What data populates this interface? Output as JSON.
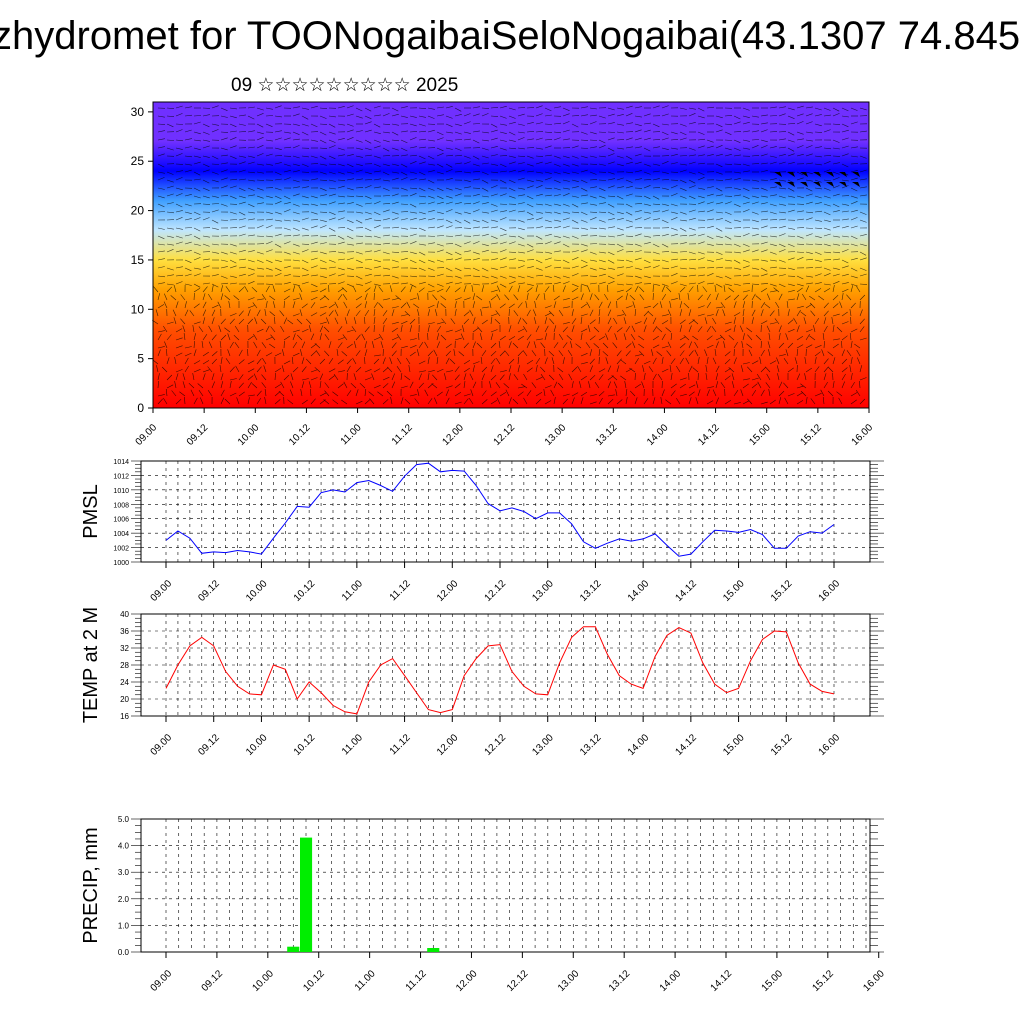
{
  "header": {
    "title": "zhydromet for TOONogaibaiSeloNogaibai(43.1307 74.845",
    "subtitle": "09 ☆☆☆☆☆☆☆☆☆ 2025"
  },
  "colors": {
    "pmsl_line": "#0000ff",
    "temp_line": "#ff0000",
    "precip_bar": "#00ee00",
    "grid": "#000000"
  },
  "time_ticks": [
    "09.00",
    "09.12",
    "10.00",
    "10.12",
    "11.00",
    "11.12",
    "12.00",
    "12.12",
    "13.00",
    "13.12",
    "14.00",
    "14.12",
    "15.00",
    "15.12",
    "16.00"
  ],
  "chart_data": [
    {
      "type": "heatmap",
      "name": "vertical-section",
      "xlabel": "",
      "ylabel": "",
      "x": [
        "09.00",
        "09.12",
        "10.00",
        "10.12",
        "11.00",
        "11.12",
        "12.00",
        "12.12",
        "13.00",
        "13.12",
        "14.00",
        "14.12",
        "15.00",
        "15.12",
        "16.00"
      ],
      "yticks": [
        0,
        5,
        10,
        15,
        20,
        25,
        30
      ],
      "ylim": [
        0,
        31
      ],
      "vectors": "wind barbs overlaid",
      "colormap": [
        "#ff0000",
        "#ff5000",
        "#ffa000",
        "#ffe040",
        "#bfe6ff",
        "#40a0ff",
        "#0000ff",
        "#7030ff"
      ],
      "levels": [
        0,
        8,
        12,
        15,
        18,
        21,
        24,
        27
      ]
    },
    {
      "type": "line",
      "name": "PMSL",
      "ylabel": "PMSL",
      "ylim": [
        1000,
        1014
      ],
      "yticks": [
        1000,
        1002,
        1004,
        1006,
        1008,
        1010,
        1012,
        1014
      ],
      "x_start": "09.00",
      "x_step_hours": 3,
      "values": [
        1003.0,
        1004.3,
        1003.3,
        1001.2,
        1001.4,
        1001.3,
        1001.6,
        1001.4,
        1001.1,
        1003.3,
        1005.4,
        1007.7,
        1007.6,
        1009.6,
        1010.0,
        1009.7,
        1011.0,
        1011.3,
        1010.6,
        1009.8,
        1011.9,
        1013.5,
        1013.7,
        1012.5,
        1012.7,
        1012.6,
        1010.6,
        1008.1,
        1007.1,
        1007.5,
        1007.0,
        1006.0,
        1006.8,
        1006.8,
        1005.3,
        1002.8,
        1001.9,
        1002.6,
        1003.2,
        1002.9,
        1003.2,
        1003.9,
        1002.3,
        1000.8,
        1001.1,
        1002.8,
        1004.4,
        1004.3,
        1004.1,
        1004.5,
        1003.8,
        1001.9,
        1001.9,
        1003.6,
        1004.2,
        1004.0,
        1005.2
      ]
    },
    {
      "type": "line",
      "name": "TEMP at 2 M",
      "ylabel": "TEMP at 2 M",
      "ylim": [
        16,
        40
      ],
      "yticks": [
        16,
        20,
        24,
        28,
        32,
        36,
        40
      ],
      "x_start": "09.00",
      "x_step_hours": 3,
      "values": [
        22.5,
        28.0,
        32.5,
        34.5,
        32.5,
        26.5,
        23.0,
        21.2,
        21.0,
        28.0,
        27.0,
        20.0,
        24.0,
        21.5,
        18.5,
        17.0,
        16.5,
        24.0,
        28.0,
        29.5,
        25.5,
        21.5,
        17.5,
        16.8,
        17.5,
        25.5,
        29.5,
        32.5,
        32.8,
        26.5,
        23.0,
        21.2,
        21.0,
        28.5,
        34.5,
        37.0,
        37.0,
        30.5,
        25.5,
        23.5,
        22.5,
        30.0,
        35.0,
        36.8,
        35.5,
        28.5,
        23.5,
        21.5,
        22.5,
        29.0,
        34.0,
        36.0,
        35.8,
        28.5,
        23.5,
        21.8,
        21.2
      ]
    },
    {
      "type": "bar",
      "name": "PRECIP, mm",
      "ylabel": "PRECIP, mm",
      "ylim": [
        0,
        5
      ],
      "yticks": [
        "0.0",
        "1.0",
        "2.0",
        "3.0",
        "4.0",
        "5.0"
      ],
      "x_start": "09.00",
      "x_step_hours": 3,
      "values": [
        0,
        0,
        0,
        0,
        0,
        0,
        0,
        0,
        0,
        0,
        0.2,
        4.3,
        0,
        0,
        0,
        0,
        0,
        0,
        0,
        0,
        0,
        0.15,
        0,
        0,
        0,
        0,
        0,
        0,
        0,
        0,
        0,
        0,
        0,
        0,
        0,
        0,
        0,
        0,
        0,
        0,
        0,
        0,
        0,
        0,
        0,
        0,
        0,
        0,
        0,
        0,
        0,
        0,
        0,
        0,
        0,
        0
      ]
    }
  ]
}
